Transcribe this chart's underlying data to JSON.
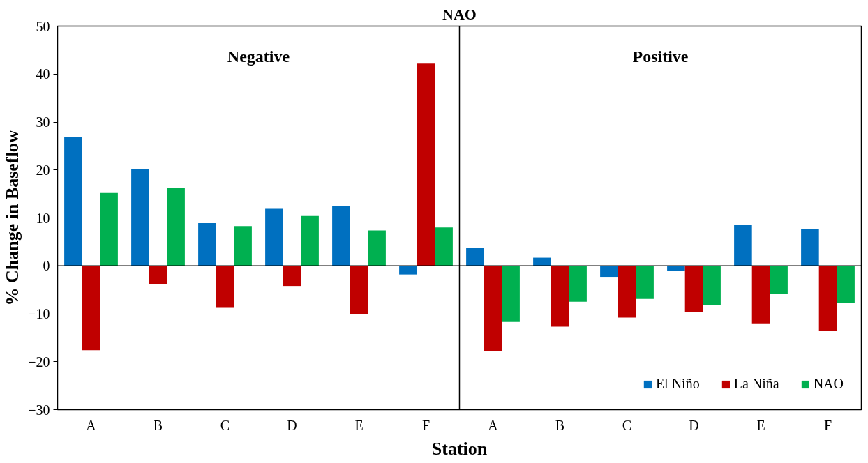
{
  "chart_data": {
    "type": "bar",
    "title": "NAO",
    "xlabel": "Station",
    "ylabel": "% Change in Baseflow",
    "categories": [
      "A",
      "B",
      "C",
      "D",
      "E",
      "F",
      "A",
      "B",
      "C",
      "D",
      "E",
      "F"
    ],
    "series": [
      {
        "name": "El Niño",
        "color": "#0070c0",
        "values": [
          26.8,
          20.2,
          8.9,
          11.9,
          12.5,
          -1.8,
          3.8,
          1.7,
          -2.3,
          -1.1,
          8.6,
          7.7
        ]
      },
      {
        "name": "La Niña",
        "color": "#c00000",
        "values": [
          -17.6,
          -3.8,
          -8.6,
          -4.2,
          -10.1,
          42.2,
          -17.7,
          -12.7,
          -10.8,
          -9.6,
          -12.0,
          -13.6
        ]
      },
      {
        "name": "NAO",
        "color": "#00b050",
        "values": [
          15.2,
          16.3,
          8.3,
          10.4,
          7.4,
          8.0,
          -11.7,
          -7.5,
          -6.9,
          -8.1,
          -5.9,
          -7.8
        ]
      }
    ],
    "ylim": [
      -30,
      50
    ],
    "yticks": [
      -30,
      -20,
      -10,
      0,
      10,
      20,
      30,
      40,
      50
    ],
    "annotations": [
      "Negative",
      "Positive"
    ],
    "legend": "bottom right"
  }
}
